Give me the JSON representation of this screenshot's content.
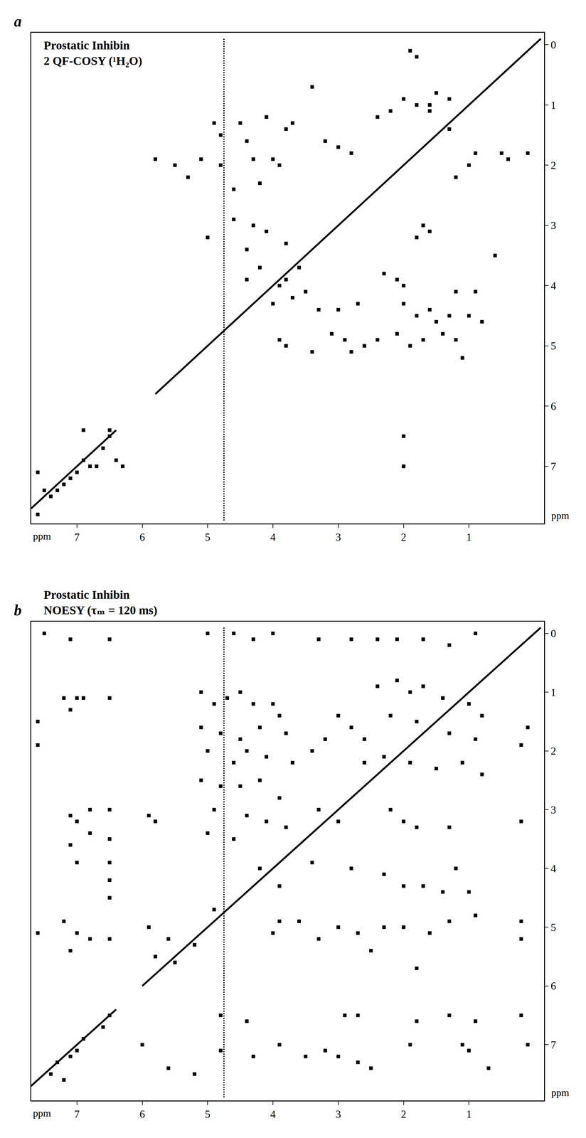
{
  "chart_data": [
    {
      "type": "scatter",
      "panel_label": "a",
      "title": "Prostatic Inhibin",
      "subtitle": "2 QF-COSY (¹H₂O)",
      "x_label": "ppm",
      "y_label": "ppm",
      "xlim": [
        7.7,
        -0.15
      ],
      "ylim": [
        7.95,
        -0.2
      ],
      "xticks": [
        7,
        6,
        5,
        4,
        3,
        2,
        1
      ],
      "yticks": [
        0,
        1,
        2,
        3,
        4,
        5,
        6,
        7
      ],
      "grid": false,
      "series": [
        {
          "type": "line",
          "line_style": "solid",
          "color": "#000000",
          "x": [
            7.7,
            6.4,
            null,
            5.8,
            -0.1
          ],
          "y": [
            7.7,
            6.4,
            null,
            5.8,
            -0.1
          ]
        },
        {
          "type": "line",
          "line_style": "dotted",
          "color": "#000000",
          "x": [
            4.75,
            4.75
          ],
          "y": [
            -0.1,
            7.9
          ]
        },
        {
          "type": "scatter",
          "marker": "square",
          "color": "#000000",
          "x": [
            7.2,
            7.1,
            6.9,
            6.8,
            7.3,
            7.4,
            7.5,
            6.6,
            6.5,
            6.5,
            7.0,
            6.4,
            6.9,
            7.6,
            7.6,
            6.7,
            6.3,
            4.9,
            4.8,
            4.5,
            4.4,
            4.3,
            4.8,
            5.1,
            4.6,
            4.2,
            4.0,
            3.9,
            3.8,
            4.1,
            4.6,
            4.3,
            4.1,
            5.0,
            4.4,
            3.8,
            3.6,
            3.7,
            2.0,
            1.8,
            1.6,
            1.5,
            1.3,
            2.2,
            1.9,
            1.8,
            2.4,
            1.6,
            0.5,
            0.4,
            0.1,
            3.0,
            2.8,
            3.2,
            3.4,
            1.0,
            0.9,
            1.2,
            1.3,
            1.7,
            1.6,
            1.8,
            2.3,
            2.1,
            2.0,
            1.8,
            1.6,
            1.5,
            1.3,
            1.0,
            0.9,
            0.8,
            1.2,
            2.4,
            2.1,
            1.9,
            1.7,
            1.4,
            1.2,
            2.9,
            2.8,
            2.6,
            3.1,
            3.3,
            3.0,
            2.7,
            3.5,
            3.8,
            3.9,
            3.4,
            0.6,
            2.0,
            1.1,
            4.2,
            3.8,
            3.7,
            4.4,
            3.9,
            4.0,
            5.8,
            5.3,
            5.5,
            2.0,
            2.0
          ],
          "y": [
            7.3,
            7.2,
            6.9,
            7.0,
            7.4,
            7.5,
            7.4,
            6.7,
            6.5,
            6.4,
            7.1,
            6.9,
            6.4,
            7.1,
            7.8,
            7.0,
            7.0,
            1.3,
            1.5,
            1.3,
            1.6,
            1.9,
            2.0,
            1.9,
            2.4,
            2.3,
            1.9,
            2.0,
            1.4,
            1.2,
            2.9,
            3.0,
            3.1,
            3.2,
            3.4,
            3.3,
            3.7,
            1.3,
            0.9,
            1.0,
            1.0,
            0.8,
            0.9,
            1.1,
            0.1,
            0.2,
            1.2,
            1.1,
            1.8,
            1.9,
            1.8,
            1.7,
            1.8,
            1.6,
            0.7,
            2.0,
            1.8,
            2.2,
            1.4,
            3.0,
            3.1,
            3.2,
            3.8,
            3.9,
            4.0,
            4.5,
            4.4,
            4.6,
            4.5,
            4.5,
            4.1,
            4.6,
            4.1,
            4.9,
            4.8,
            5.0,
            4.9,
            4.8,
            4.9,
            4.9,
            5.1,
            5.0,
            4.8,
            4.4,
            4.4,
            4.3,
            4.1,
            5.0,
            4.9,
            5.1,
            3.5,
            4.3,
            5.2,
            3.7,
            3.9,
            4.2,
            3.9,
            4.0,
            4.3,
            1.9,
            2.2,
            2.0,
            6.5,
            7.0
          ]
        }
      ]
    },
    {
      "type": "scatter",
      "panel_label": "b",
      "title": "Prostatic Inhibin",
      "subtitle": "NOESY (τₘ = 120 ms)",
      "x_label": "ppm",
      "y_label": "ppm",
      "xlim": [
        7.7,
        -0.15
      ],
      "ylim": [
        7.95,
        -0.2
      ],
      "xticks": [
        7,
        6,
        5,
        4,
        3,
        2,
        1
      ],
      "yticks": [
        0,
        1,
        2,
        3,
        4,
        5,
        6,
        7
      ],
      "grid": false,
      "series": [
        {
          "type": "line",
          "line_style": "solid",
          "color": "#000000",
          "x": [
            7.8,
            6.4,
            null,
            6.0,
            -0.1
          ],
          "y": [
            7.8,
            6.4,
            null,
            6.0,
            -0.1
          ]
        },
        {
          "type": "line",
          "line_style": "dotted",
          "color": "#000000",
          "x": [
            4.75,
            4.75
          ],
          "y": [
            -0.1,
            7.9
          ]
        },
        {
          "type": "scatter",
          "marker": "square",
          "color": "#000000",
          "x": [
            7.3,
            7.1,
            6.9,
            7.0,
            6.6,
            6.5,
            7.4,
            7.2,
            7.5,
            7.1,
            6.5,
            7.2,
            7.0,
            6.9,
            6.5,
            7.6,
            7.1,
            7.1,
            7.0,
            6.8,
            7.1,
            6.8,
            7.0,
            6.5,
            6.5,
            6.5,
            6.5,
            6.5,
            7.2,
            7.0,
            6.8,
            7.1,
            6.5,
            7.6,
            7.6,
            5.2,
            4.8,
            4.8,
            4.4,
            4.3,
            3.9,
            3.5,
            3.2,
            3.0,
            2.9,
            2.7,
            2.7,
            2.5,
            1.9,
            1.8,
            1.3,
            1.1,
            1.0,
            0.9,
            0.7,
            0.2,
            0.1,
            6.0,
            5.6,
            5.0,
            4.6,
            4.3,
            4.0,
            3.3,
            2.8,
            2.4,
            2.1,
            1.7,
            1.3,
            0.9,
            5.1,
            4.9,
            4.7,
            4.5,
            4.3,
            4.0,
            3.9,
            5.1,
            4.8,
            4.5,
            4.2,
            3.8,
            5.0,
            4.6,
            4.4,
            4.1,
            3.7,
            5.1,
            4.8,
            4.5,
            4.2,
            3.9,
            4.9,
            4.4,
            4.1,
            3.8,
            5.0,
            4.6,
            2.4,
            2.1,
            1.9,
            1.7,
            1.4,
            1.0,
            0.8,
            2.2,
            1.8,
            1.3,
            0.9,
            2.3,
            1.9,
            1.5,
            1.1,
            0.8,
            2.6,
            0.1,
            0.2,
            3.0,
            2.8,
            3.2,
            2.6,
            3.4,
            3.3,
            3.0,
            2.2,
            2.0,
            1.8,
            1.3,
            0.2,
            3.4,
            2.8,
            2.3,
            2.0,
            1.7,
            1.4,
            1.0,
            0.9,
            1.3,
            1.6,
            2.0,
            2.3,
            2.7,
            3.0,
            3.3,
            3.6,
            3.9,
            4.0,
            2.5,
            1.8,
            0.2,
            0.2,
            1.2,
            5.9,
            5.8,
            5.9,
            5.8,
            5.6,
            4.2,
            3.9,
            4.9,
            5.2,
            5.5
          ],
          "y": [
            7.3,
            7.2,
            6.9,
            7.1,
            6.7,
            6.5,
            7.5,
            7.6,
            0.0,
            0.1,
            0.1,
            1.1,
            1.1,
            1.1,
            1.1,
            1.5,
            1.3,
            3.1,
            3.2,
            3.0,
            3.6,
            3.4,
            3.9,
            3.0,
            3.5,
            3.9,
            4.2,
            4.5,
            4.9,
            5.1,
            5.2,
            5.4,
            5.2,
            1.9,
            5.1,
            7.5,
            7.1,
            6.5,
            6.6,
            7.2,
            7.0,
            7.2,
            7.1,
            7.2,
            6.5,
            6.5,
            7.3,
            7.4,
            7.0,
            6.6,
            6.5,
            7.0,
            7.1,
            6.6,
            7.4,
            6.5,
            7.0,
            7.0,
            7.4,
            0.0,
            0.0,
            0.1,
            0.0,
            0.1,
            0.1,
            0.1,
            0.1,
            0.1,
            0.2,
            0.0,
            1.0,
            1.2,
            1.1,
            1.0,
            1.2,
            1.2,
            1.4,
            1.6,
            1.7,
            1.8,
            1.6,
            1.7,
            2.0,
            2.2,
            2.0,
            2.1,
            2.2,
            2.5,
            2.6,
            2.6,
            2.5,
            2.8,
            3.0,
            3.1,
            3.2,
            3.3,
            3.4,
            3.5,
            0.9,
            0.8,
            1.0,
            0.9,
            1.1,
            1.2,
            1.4,
            1.4,
            1.5,
            1.7,
            1.8,
            2.1,
            2.2,
            2.3,
            2.2,
            2.4,
            1.8,
            1.6,
            1.9,
            1.4,
            1.6,
            1.8,
            2.2,
            2.0,
            3.0,
            3.2,
            3.0,
            3.2,
            3.3,
            3.3,
            3.2,
            3.9,
            4.0,
            4.1,
            4.3,
            4.3,
            4.4,
            4.4,
            4.8,
            4.9,
            5.1,
            5.0,
            5.0,
            5.1,
            5.0,
            5.2,
            4.9,
            4.9,
            5.1,
            5.4,
            5.7,
            4.9,
            5.2,
            4.0,
            3.1,
            3.2,
            5.0,
            5.5,
            5.2,
            4.0,
            4.3,
            4.7,
            5.3,
            5.6
          ]
        }
      ]
    }
  ]
}
